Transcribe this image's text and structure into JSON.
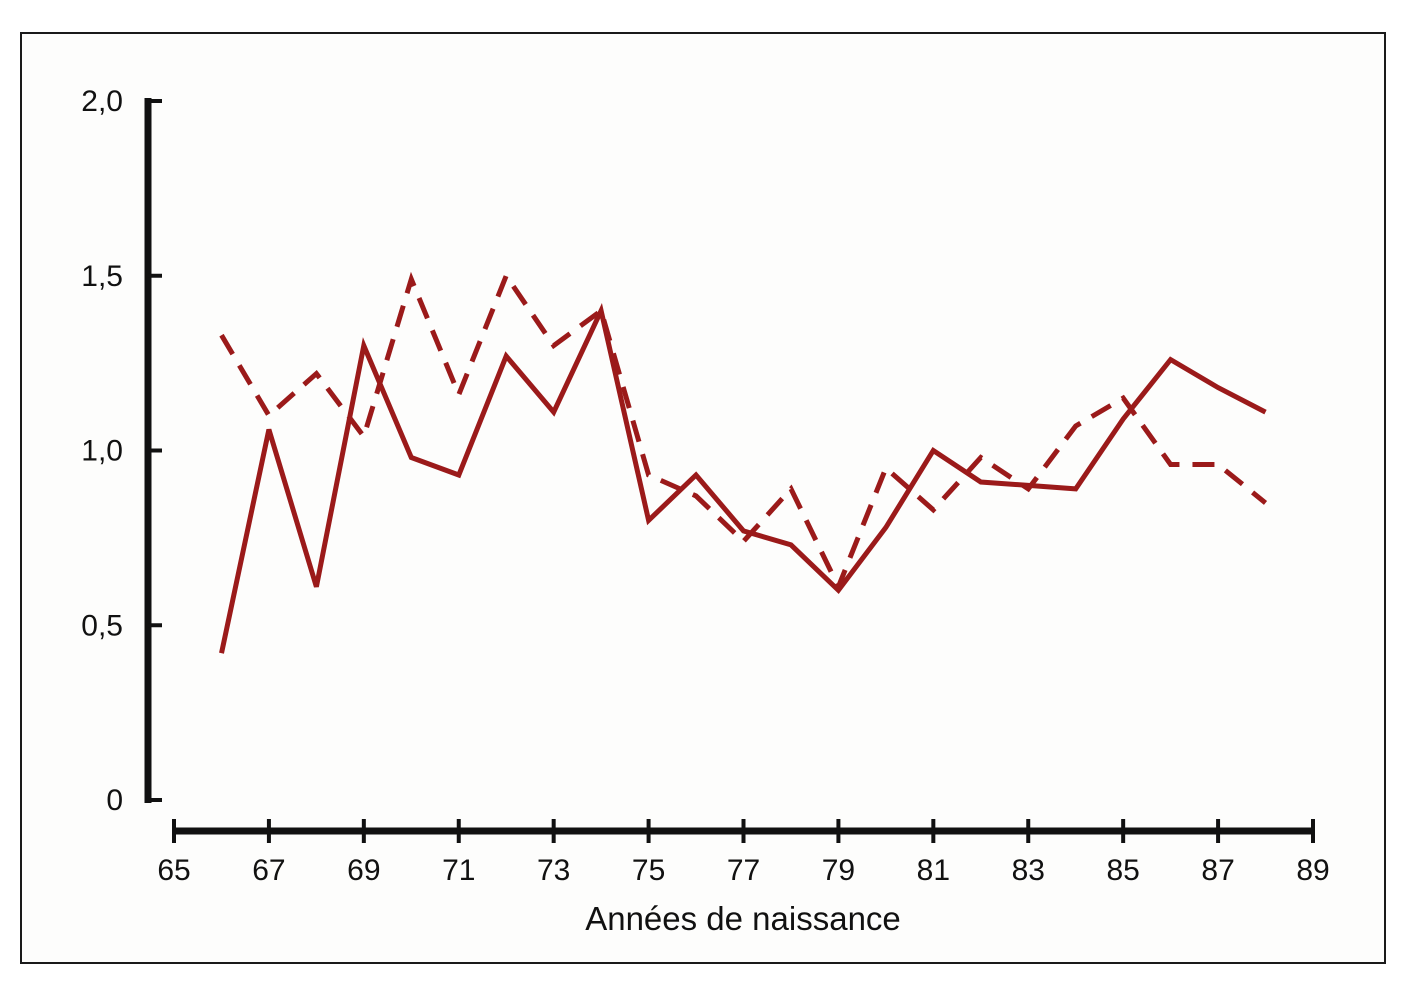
{
  "chart_data": {
    "type": "line",
    "title": "",
    "xlabel": "Années de naissance",
    "ylabel": "",
    "xlim": [
      65,
      89
    ],
    "ylim": [
      0,
      2.0
    ],
    "x_ticks": [
      65,
      67,
      69,
      71,
      73,
      75,
      77,
      79,
      81,
      83,
      85,
      87,
      89
    ],
    "x_tick_labels": [
      "65",
      "67",
      "69",
      "71",
      "73",
      "75",
      "77",
      "79",
      "81",
      "83",
      "85",
      "87",
      "89"
    ],
    "y_ticks": [
      0,
      0.5,
      1.0,
      1.5,
      2.0
    ],
    "y_tick_labels": [
      "0",
      "0,5",
      "1,0",
      "1,5",
      "2,0"
    ],
    "grid": false,
    "legend": "none",
    "x": [
      66,
      67,
      68,
      69,
      70,
      71,
      72,
      73,
      74,
      75,
      76,
      77,
      78,
      79,
      80,
      81,
      82,
      83,
      84,
      85,
      86,
      87,
      88
    ],
    "series": [
      {
        "style": "solid",
        "color": "#9b1a1a",
        "values": [
          0.42,
          1.06,
          0.61,
          1.3,
          0.98,
          0.93,
          1.27,
          1.11,
          1.4,
          0.8,
          0.93,
          0.77,
          0.73,
          0.6,
          0.78,
          1.0,
          0.91,
          0.9,
          0.89,
          1.09,
          1.26,
          1.18,
          1.11
        ]
      },
      {
        "style": "dashed",
        "color": "#9b1a1a",
        "values": [
          1.33,
          1.1,
          1.22,
          1.04,
          1.49,
          1.16,
          1.5,
          1.3,
          1.4,
          0.93,
          0.87,
          0.74,
          0.89,
          0.61,
          0.95,
          0.83,
          0.98,
          0.89,
          1.07,
          1.15,
          0.96,
          0.96,
          0.85
        ]
      }
    ]
  }
}
